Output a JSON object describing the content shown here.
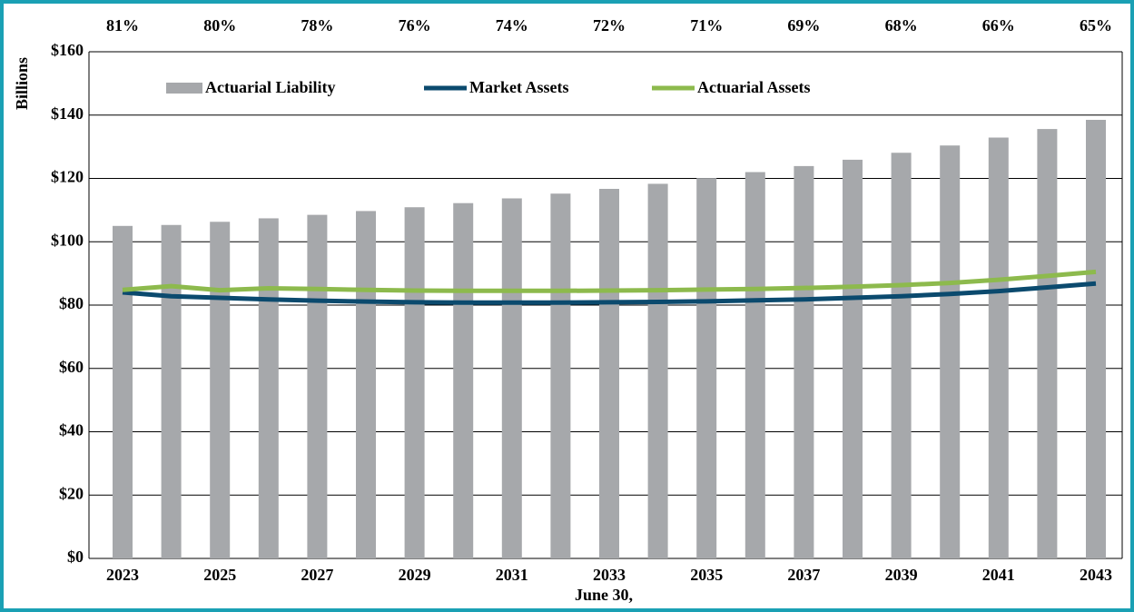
{
  "chart_data": {
    "type": "bar_line",
    "x_label": "June 30,",
    "y_label": "Billions",
    "categories": [
      "2023",
      null,
      "2025",
      null,
      "2027",
      null,
      "2029",
      null,
      "2031",
      null,
      "2033",
      null,
      "2035",
      null,
      "2037",
      null,
      "2039",
      null,
      "2041",
      null,
      "2043"
    ],
    "funded_ratio_labels": [
      "81%",
      null,
      "80%",
      null,
      "78%",
      null,
      "76%",
      null,
      "74%",
      null,
      "72%",
      null,
      "71%",
      null,
      "69%",
      null,
      "68%",
      null,
      "66%",
      null,
      "65%"
    ],
    "series": [
      {
        "name": "Actuarial Liability",
        "type": "bar",
        "color": "#a6a8ab",
        "values": [
          105,
          105.3,
          106.3,
          107.4,
          108.5,
          109.7,
          110.9,
          112.2,
          113.7,
          115.2,
          116.7,
          118.3,
          120.1,
          122,
          123.9,
          125.9,
          128.1,
          130.4,
          132.9,
          135.6,
          138.5
        ]
      },
      {
        "name": "Market Assets",
        "type": "line",
        "color": "#0b4a6e",
        "values": [
          84,
          82.8,
          82.3,
          81.8,
          81.4,
          81.1,
          80.9,
          80.8,
          80.8,
          80.8,
          80.9,
          81,
          81.2,
          81.5,
          81.8,
          82.3,
          82.8,
          83.5,
          84.4,
          85.6,
          86.8
        ]
      },
      {
        "name": "Actuarial Assets",
        "type": "line",
        "color": "#8dba4d",
        "values": [
          84.8,
          86,
          84.7,
          85.3,
          85.1,
          84.8,
          84.6,
          84.5,
          84.5,
          84.5,
          84.6,
          84.7,
          84.9,
          85.1,
          85.4,
          85.8,
          86.3,
          87,
          88,
          89.2,
          90.5
        ]
      }
    ],
    "ylim": [
      0,
      160
    ],
    "yticks": [
      {
        "value": 0,
        "label": "$0"
      },
      {
        "value": 20,
        "label": "$20"
      },
      {
        "value": 40,
        "label": "$40"
      },
      {
        "value": 60,
        "label": "$60"
      },
      {
        "value": 80,
        "label": "$80"
      },
      {
        "value": 100,
        "label": "$100"
      },
      {
        "value": 120,
        "label": "$120"
      },
      {
        "value": 140,
        "label": "$140"
      },
      {
        "value": 160,
        "label": "$160"
      }
    ],
    "grid": true,
    "border_color": "#1aa0b4"
  }
}
